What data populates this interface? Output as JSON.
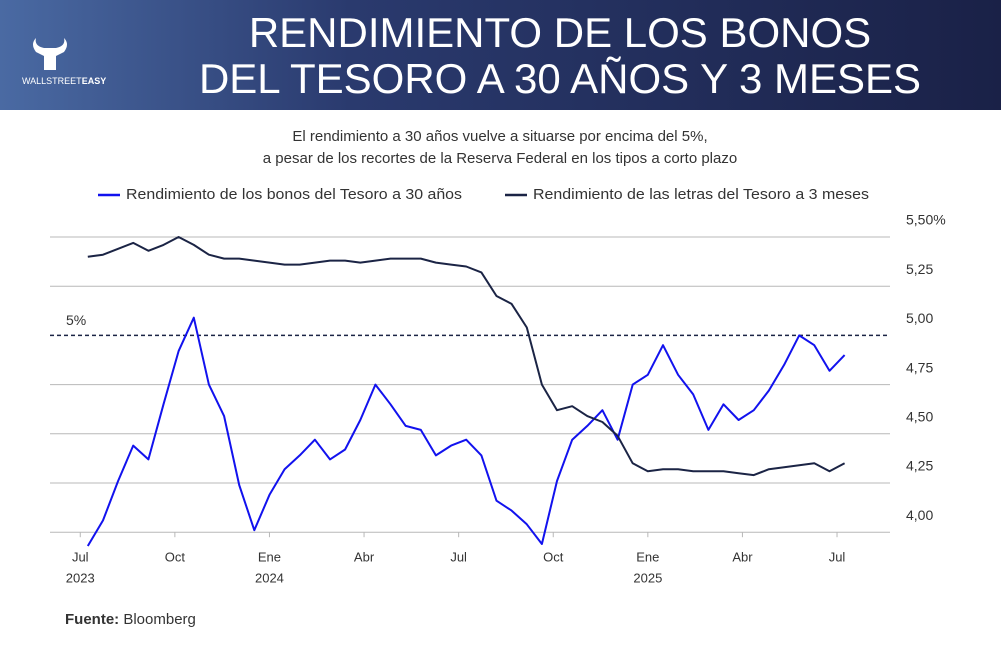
{
  "chart_data": {
    "type": "line",
    "logo": [
      "WALLSTREET",
      "EASY"
    ],
    "title": [
      "RENDIMIENTO DE LOS BONOS",
      "DEL TESORO A 30 AÑOS Y 3 MESES"
    ],
    "subtitle": [
      "El rendimiento a 30 años vuelve a situarse por encima del 5%,",
      "a pesar de los recortes de la Reserva Federal en los tipos a corto plazo"
    ],
    "x": [
      2023.52,
      2023.56,
      2023.6,
      2023.64,
      2023.68,
      2023.72,
      2023.76,
      2023.8,
      2023.84,
      2023.88,
      2023.92,
      2023.96,
      2024.0,
      2024.04,
      2024.08,
      2024.12,
      2024.16,
      2024.2,
      2024.24,
      2024.28,
      2024.32,
      2024.36,
      2024.4,
      2024.44,
      2024.48,
      2024.52,
      2024.56,
      2024.6,
      2024.64,
      2024.68,
      2024.72,
      2024.76,
      2024.8,
      2024.84,
      2024.88,
      2024.92,
      2024.96,
      2025.0,
      2025.04,
      2025.08,
      2025.12,
      2025.16,
      2025.2,
      2025.24,
      2025.28,
      2025.32,
      2025.36,
      2025.4,
      2025.44,
      2025.48,
      2025.52
    ],
    "series": [
      {
        "name": "Rendimiento de los bonos del Tesoro a 30 años",
        "color": "#1212ee",
        "values": [
          3.93,
          4.06,
          4.26,
          4.44,
          4.37,
          4.65,
          4.92,
          5.09,
          4.75,
          4.59,
          4.24,
          4.01,
          4.19,
          4.32,
          4.39,
          4.47,
          4.37,
          4.42,
          4.57,
          4.75,
          4.65,
          4.54,
          4.52,
          4.39,
          4.44,
          4.47,
          4.39,
          4.16,
          4.11,
          4.04,
          3.94,
          4.26,
          4.47,
          4.54,
          4.62,
          4.47,
          4.75,
          4.8,
          4.95,
          4.8,
          4.7,
          4.52,
          4.65,
          4.57,
          4.62,
          4.72,
          4.85,
          5.0,
          4.95,
          4.82,
          4.9
        ]
      },
      {
        "name": "Rendimiento de las letras del Tesoro a 3 meses",
        "color": "#1b2445",
        "values": [
          5.4,
          5.41,
          5.44,
          5.47,
          5.43,
          5.46,
          5.5,
          5.46,
          5.41,
          5.39,
          5.39,
          5.38,
          5.37,
          5.36,
          5.36,
          5.37,
          5.38,
          5.38,
          5.37,
          5.38,
          5.39,
          5.39,
          5.39,
          5.37,
          5.36,
          5.35,
          5.32,
          5.2,
          5.16,
          5.04,
          4.75,
          4.62,
          4.64,
          4.59,
          4.56,
          4.49,
          4.35,
          4.31,
          4.32,
          4.32,
          4.31,
          4.31,
          4.31,
          4.3,
          4.29,
          4.32,
          4.33,
          4.34,
          4.35,
          4.31,
          4.35
        ]
      }
    ],
    "xlim": [
      2023.42,
      2025.64
    ],
    "xticks": [
      {
        "value": 2023.5,
        "label": "Jul"
      },
      {
        "value": 2023.75,
        "label": "Oct"
      },
      {
        "value": 2024.0,
        "label": "Ene"
      },
      {
        "value": 2024.25,
        "label": "Abr"
      },
      {
        "value": 2024.5,
        "label": "Jul"
      },
      {
        "value": 2024.75,
        "label": "Oct"
      },
      {
        "value": 2025.0,
        "label": "Ene"
      },
      {
        "value": 2025.25,
        "label": "Abr"
      },
      {
        "value": 2025.5,
        "label": "Jul"
      }
    ],
    "xyears": [
      {
        "value": 2023.5,
        "label": "2023"
      },
      {
        "value": 2024.0,
        "label": "2024"
      },
      {
        "value": 2025.0,
        "label": "2025"
      }
    ],
    "ylim": [
      3.9,
      5.5
    ],
    "yticks": [
      {
        "value": 4,
        "label": "4,00"
      },
      {
        "value": 4.25,
        "label": "4,25"
      },
      {
        "value": 4.5,
        "label": "4,50"
      },
      {
        "value": 4.75,
        "label": "4,75"
      },
      {
        "value": 5,
        "label": "5,00"
      },
      {
        "value": 5.25,
        "label": "5,25"
      },
      {
        "value": 5.5,
        "label": "5,50%"
      }
    ],
    "reference_line": {
      "value": 5,
      "label": "5%"
    },
    "grid": true,
    "source_label": "Fuente:",
    "source": "Bloomberg"
  }
}
